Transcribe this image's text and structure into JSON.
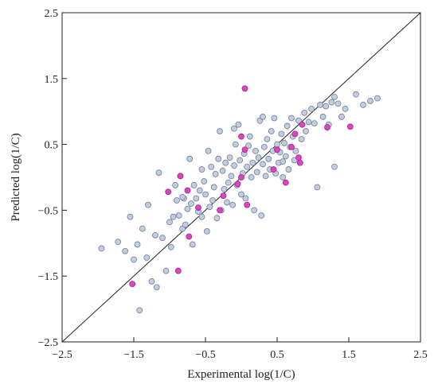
{
  "chart_data": {
    "type": "scatter",
    "title": "",
    "xlabel": "Experimental log(1/C)",
    "ylabel": "Predicted log(1/C)",
    "xlim": [
      -2.5,
      2.5
    ],
    "ylim": [
      -2.5,
      2.5
    ],
    "x_ticks": [
      -2.5,
      -1.5,
      -0.5,
      0.5,
      1.5,
      2.5
    ],
    "y_ticks": [
      -2.5,
      -1.5,
      -0.5,
      0.5,
      1.5,
      2.5
    ],
    "x_tick_labels": [
      "−2.5",
      "−1.5",
      "−0.5",
      "0.5",
      "1.5",
      "2.5"
    ],
    "y_tick_labels": [
      "−2.5",
      "−1.5",
      "−0.5",
      "0.5",
      "1.5",
      "2.5"
    ],
    "grid": false,
    "legend": "none",
    "reference_line": {
      "from": [
        -2.5,
        -2.5
      ],
      "to": [
        2.5,
        2.5
      ],
      "color": "#222222"
    },
    "series": [
      {
        "color": "#c3cde0",
        "edge_color": "#6f7f99",
        "points": [
          [
            -1.95,
            -1.08
          ],
          [
            -1.72,
            -0.98
          ],
          [
            -1.62,
            -1.12
          ],
          [
            -1.55,
            -0.6
          ],
          [
            -1.5,
            -1.25
          ],
          [
            -1.45,
            -1.02
          ],
          [
            -1.38,
            -0.78
          ],
          [
            -1.32,
            -1.22
          ],
          [
            -1.3,
            -0.42
          ],
          [
            -1.25,
            -1.58
          ],
          [
            -1.2,
            -0.88
          ],
          [
            -1.18,
            -1.67
          ],
          [
            -1.15,
            0.07
          ],
          [
            -1.1,
            -0.92
          ],
          [
            -1.05,
            -1.42
          ],
          [
            -1.0,
            -0.68
          ],
          [
            -0.98,
            -1.06
          ],
          [
            -0.95,
            -0.6
          ],
          [
            -0.92,
            -0.12
          ],
          [
            -0.9,
            -0.35
          ],
          [
            -0.87,
            -0.58
          ],
          [
            -0.85,
            0.02
          ],
          [
            -0.82,
            -0.78
          ],
          [
            -0.8,
            -0.32
          ],
          [
            -0.78,
            -0.72
          ],
          [
            -0.75,
            -0.48
          ],
          [
            -0.72,
            0.28
          ],
          [
            -0.7,
            -0.4
          ],
          [
            -0.68,
            -1.02
          ],
          [
            -0.66,
            -0.12
          ],
          [
            -0.63,
            -0.32
          ],
          [
            -0.6,
            -0.52
          ],
          [
            -0.58,
            -0.2
          ],
          [
            -0.55,
            -0.6
          ],
          [
            -0.52,
            -0.06
          ],
          [
            -0.5,
            -0.26
          ],
          [
            -0.48,
            -0.82
          ],
          [
            -0.46,
            0.4
          ],
          [
            -0.44,
            -0.45
          ],
          [
            -0.42,
            0.16
          ],
          [
            -0.4,
            -0.35
          ],
          [
            -0.38,
            -0.15
          ],
          [
            -0.36,
            0.05
          ],
          [
            -0.34,
            -0.62
          ],
          [
            -0.32,
            0.28
          ],
          [
            -0.3,
            0.7
          ],
          [
            -0.28,
            -0.5
          ],
          [
            -0.26,
            0.1
          ],
          [
            -0.24,
            -0.18
          ],
          [
            -0.22,
            0.22
          ],
          [
            -0.2,
            -0.38
          ],
          [
            -0.18,
            -0.08
          ],
          [
            -0.16,
            0.3
          ],
          [
            -0.14,
            0.02
          ],
          [
            -0.12,
            -0.42
          ],
          [
            -0.1,
            0.18
          ],
          [
            -0.08,
            0.5
          ],
          [
            -0.06,
            -0.12
          ],
          [
            -0.04,
            0.8
          ],
          [
            -0.02,
            0.26
          ],
          [
            0.0,
            -0.26
          ],
          [
            0.02,
            0.06
          ],
          [
            0.04,
            0.36
          ],
          [
            0.06,
            -0.32
          ],
          [
            0.08,
            0.16
          ],
          [
            0.1,
            0.48
          ],
          [
            0.12,
            0.62
          ],
          [
            0.14,
            0.0
          ],
          [
            0.16,
            0.22
          ],
          [
            0.18,
            -0.5
          ],
          [
            0.2,
            0.4
          ],
          [
            0.22,
            0.08
          ],
          [
            0.24,
            0.3
          ],
          [
            0.26,
            0.86
          ],
          [
            0.28,
            -0.58
          ],
          [
            0.3,
            0.2
          ],
          [
            0.32,
            0.46
          ],
          [
            0.34,
            0.02
          ],
          [
            0.36,
            0.58
          ],
          [
            0.38,
            0.28
          ],
          [
            0.4,
            0.12
          ],
          [
            0.42,
            0.7
          ],
          [
            0.44,
            0.4
          ],
          [
            0.46,
            0.9
          ],
          [
            0.48,
            0.06
          ],
          [
            0.5,
            0.5
          ],
          [
            0.52,
            0.22
          ],
          [
            0.54,
            0.38
          ],
          [
            0.56,
            0.66
          ],
          [
            0.58,
            0.0
          ],
          [
            0.6,
            0.52
          ],
          [
            0.62,
            0.32
          ],
          [
            0.64,
            0.78
          ],
          [
            0.66,
            0.12
          ],
          [
            0.68,
            0.46
          ],
          [
            0.7,
            0.9
          ],
          [
            0.72,
            0.62
          ],
          [
            0.74,
            0.26
          ],
          [
            0.76,
            0.4
          ],
          [
            0.8,
            0.86
          ],
          [
            0.84,
            0.58
          ],
          [
            0.88,
            0.98
          ],
          [
            0.9,
            0.7
          ],
          [
            0.94,
            0.84
          ],
          [
            0.98,
            1.04
          ],
          [
            1.02,
            0.82
          ],
          [
            1.06,
            -0.15
          ],
          [
            1.1,
            1.1
          ],
          [
            1.14,
            0.92
          ],
          [
            1.18,
            1.08
          ],
          [
            1.22,
            0.8
          ],
          [
            1.26,
            1.14
          ],
          [
            1.3,
            1.22
          ],
          [
            1.35,
            1.12
          ],
          [
            1.4,
            0.92
          ],
          [
            1.45,
            1.04
          ],
          [
            1.6,
            1.26
          ],
          [
            1.7,
            1.1
          ],
          [
            1.8,
            1.16
          ],
          [
            1.9,
            1.2
          ],
          [
            -1.42,
            -2.02
          ],
          [
            -0.82,
            -0.3
          ],
          [
            -0.55,
            0.12
          ],
          [
            -0.1,
            0.74
          ],
          [
            0.3,
            0.92
          ],
          [
            0.58,
            0.24
          ],
          [
            1.3,
            0.16
          ]
        ]
      },
      {
        "color": "#d946c2",
        "edge_color": "#a8218f",
        "points": [
          [
            -1.52,
            -1.62
          ],
          [
            -0.88,
            -1.42
          ],
          [
            -1.02,
            -0.22
          ],
          [
            -0.85,
            0.02
          ],
          [
            -0.75,
            -0.2
          ],
          [
            -0.73,
            -0.9
          ],
          [
            -0.6,
            -0.46
          ],
          [
            -0.25,
            -0.28
          ],
          [
            -0.05,
            -0.1
          ],
          [
            0.0,
            0.0
          ],
          [
            0.05,
            0.42
          ],
          [
            0.08,
            -0.42
          ],
          [
            0.05,
            1.35
          ],
          [
            0.45,
            0.12
          ],
          [
            0.5,
            0.42
          ],
          [
            0.62,
            -0.08
          ],
          [
            0.7,
            0.46
          ],
          [
            0.75,
            0.66
          ],
          [
            0.8,
            0.3
          ],
          [
            0.82,
            0.22
          ],
          [
            0.85,
            0.8
          ],
          [
            1.2,
            0.76
          ],
          [
            1.52,
            0.77
          ],
          [
            -0.3,
            -0.5
          ],
          [
            0.0,
            0.62
          ]
        ]
      }
    ]
  }
}
